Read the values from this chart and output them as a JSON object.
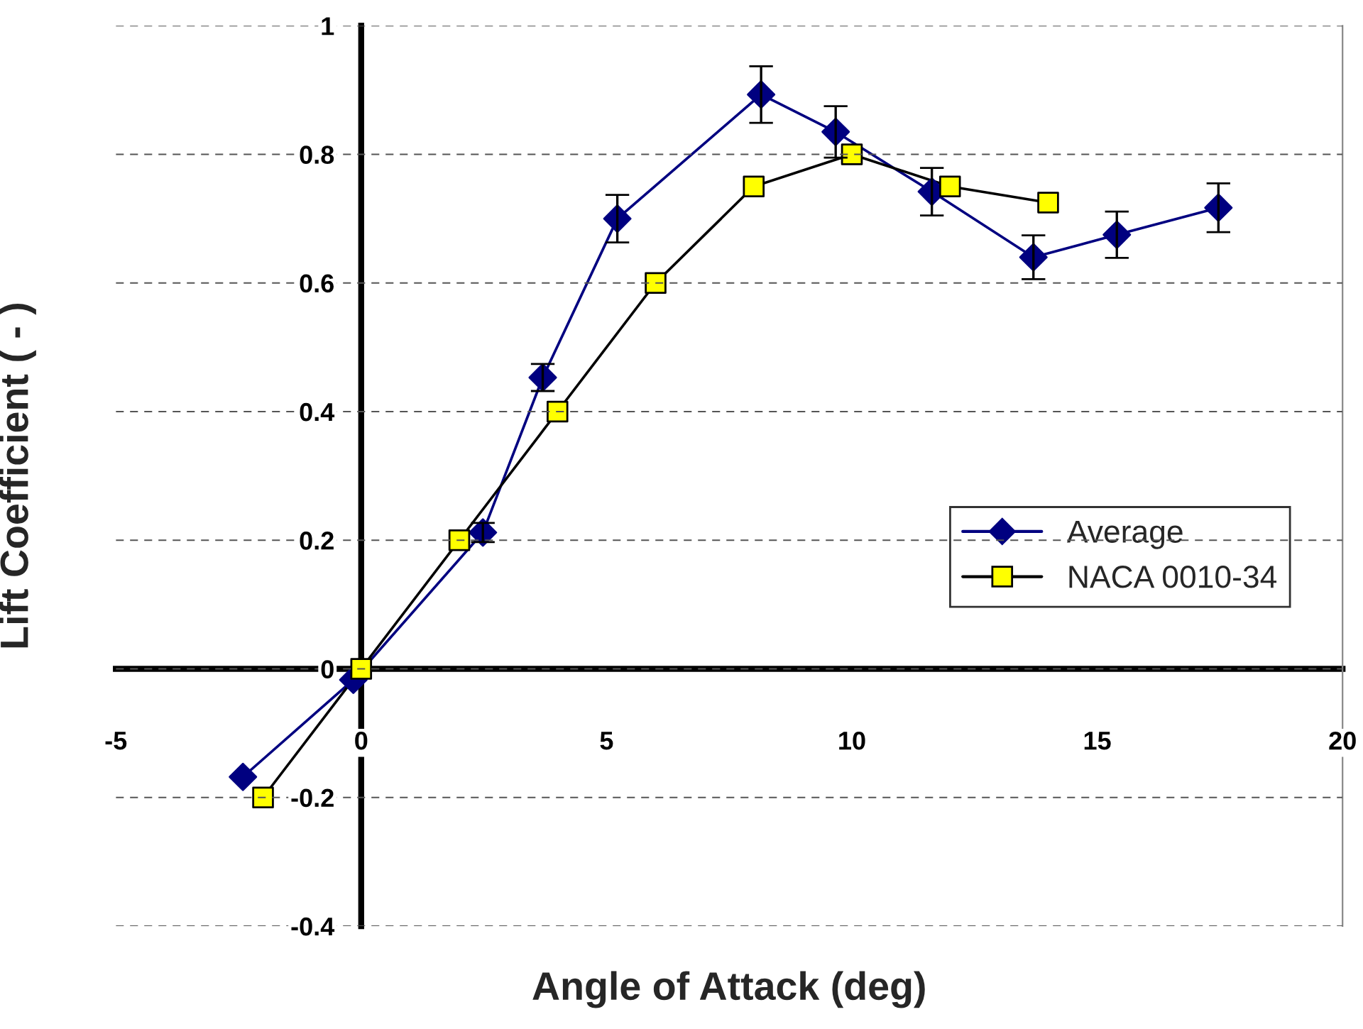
{
  "chart_data": {
    "type": "line",
    "xlabel": "Angle of Attack (deg)",
    "ylabel": "Lift Coefficient ( - )",
    "xlim": [
      -5,
      20
    ],
    "xticks": [
      -5,
      0,
      5,
      10,
      15,
      20
    ],
    "ylim": [
      -0.4,
      1
    ],
    "yticks": [
      -0.4,
      -0.2,
      0,
      0.2,
      0.4,
      0.6,
      0.8,
      1
    ],
    "grid": "y",
    "legend": "right",
    "series": [
      {
        "name": "Average",
        "color": "#000080",
        "marker": "diamond",
        "x": [
          -2.41,
          -0.16,
          2.48,
          3.7,
          5.22,
          8.15,
          9.67,
          11.63,
          13.7,
          15.4,
          17.47
        ],
        "values": [
          -0.168,
          -0.017,
          0.212,
          0.453,
          0.7,
          0.893,
          0.835,
          0.742,
          0.64,
          0.675,
          0.717
        ],
        "errors": [
          null,
          null,
          0.015,
          0.021,
          0.037,
          0.044,
          0.04,
          0.037,
          0.034,
          0.036,
          0.038
        ]
      },
      {
        "name": "NACA 0010-34",
        "color": "#000000",
        "marker": "square",
        "x": [
          -2,
          0,
          2,
          4,
          6,
          8,
          10,
          12,
          14
        ],
        "values": [
          -0.2,
          0,
          0.2,
          0.4,
          0.6,
          0.75,
          0.8,
          0.75,
          0.725
        ]
      }
    ]
  }
}
